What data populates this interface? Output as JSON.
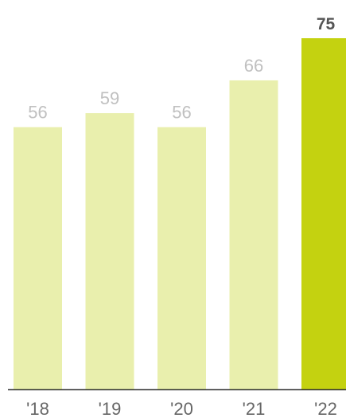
{
  "chart_data": {
    "type": "bar",
    "categories": [
      "'18",
      "'19",
      "'20",
      "'21",
      "'22"
    ],
    "values": [
      56,
      59,
      56,
      66,
      75
    ],
    "value_labels": [
      "56",
      "59",
      "56",
      "66",
      "75"
    ],
    "highlight_index": 4,
    "ylim": [
      0,
      75
    ],
    "grid": false,
    "colors": {
      "bar": "#e9efad",
      "highlight_bar": "#c4d210",
      "label": "#c0c0c0",
      "highlight_label": "#555555",
      "tick_label": "#666666",
      "axis": "#333333"
    }
  }
}
